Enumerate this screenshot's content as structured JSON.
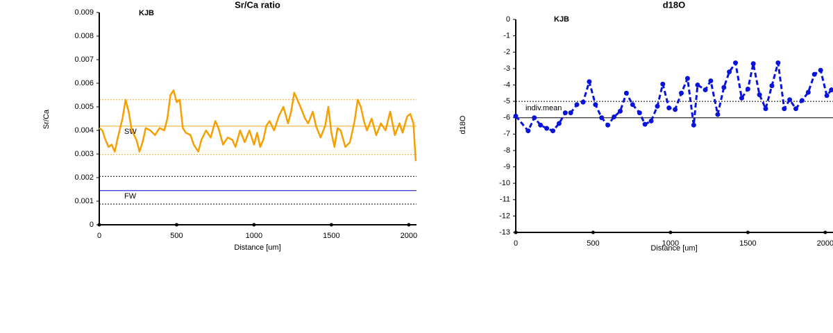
{
  "chart_data": [
    {
      "type": "line",
      "title": "Sr/Ca ratio",
      "x_label": "Distance [um]",
      "y_label": "Sr/Ca",
      "xlim": [
        0,
        2050
      ],
      "xticks": [
        0,
        500,
        1000,
        1500,
        2000
      ],
      "ylim": [
        0,
        0.009
      ],
      "yticks": [
        0,
        0.001,
        0.002,
        0.003,
        0.004,
        0.005,
        0.006,
        0.007,
        0.008,
        0.009
      ],
      "annotations": [
        "KJB",
        "SW",
        "FW"
      ],
      "reference_lines": [
        {
          "value": 0.0053,
          "color": "#f5a623",
          "style": "dotted"
        },
        {
          "value": 0.00418,
          "color": "#f5a623",
          "style": "solid"
        },
        {
          "value": 0.00298,
          "color": "#f5a623",
          "style": "dotted"
        },
        {
          "value": 0.00205,
          "color": "#000000",
          "style": "dotted"
        },
        {
          "value": 0.00145,
          "color": "#0000cc",
          "style": "solid"
        },
        {
          "value": 0.00088,
          "color": "#000000",
          "style": "dotted"
        }
      ],
      "series": [
        {
          "color": "#f5a000",
          "markers": false,
          "dashed": false,
          "x": [
            0,
            20,
            40,
            60,
            80,
            100,
            120,
            150,
            170,
            190,
            210,
            240,
            260,
            280,
            300,
            330,
            360,
            390,
            420,
            440,
            460,
            480,
            500,
            520,
            540,
            560,
            590,
            610,
            640,
            660,
            690,
            720,
            750,
            770,
            800,
            830,
            860,
            880,
            910,
            940,
            970,
            1000,
            1020,
            1040,
            1060,
            1080,
            1100,
            1130,
            1160,
            1190,
            1220,
            1240,
            1260,
            1280,
            1300,
            1330,
            1350,
            1380,
            1400,
            1430,
            1460,
            1480,
            1500,
            1520,
            1540,
            1560,
            1590,
            1620,
            1650,
            1670,
            1690,
            1710,
            1730,
            1760,
            1790,
            1820,
            1850,
            1880,
            1910,
            1940,
            1960,
            1990,
            2010,
            2030,
            2045
          ],
          "values": [
            0.0041,
            0.004,
            0.0036,
            0.0033,
            0.0034,
            0.0031,
            0.0037,
            0.0045,
            0.0053,
            0.0048,
            0.004,
            0.0036,
            0.0031,
            0.0035,
            0.0041,
            0.004,
            0.0038,
            0.0041,
            0.004,
            0.0045,
            0.0055,
            0.0057,
            0.0052,
            0.0053,
            0.0041,
            0.0039,
            0.0038,
            0.0034,
            0.0031,
            0.0036,
            0.004,
            0.0037,
            0.0044,
            0.0041,
            0.0034,
            0.0037,
            0.0036,
            0.0033,
            0.004,
            0.0035,
            0.004,
            0.0034,
            0.0039,
            0.0033,
            0.0036,
            0.0042,
            0.0044,
            0.004,
            0.0046,
            0.005,
            0.0043,
            0.0048,
            0.0056,
            0.0053,
            0.005,
            0.0045,
            0.0043,
            0.0048,
            0.0042,
            0.0037,
            0.0042,
            0.005,
            0.0039,
            0.0033,
            0.0041,
            0.004,
            0.0033,
            0.0035,
            0.0044,
            0.0053,
            0.005,
            0.0044,
            0.004,
            0.0045,
            0.0038,
            0.0043,
            0.004,
            0.0048,
            0.0038,
            0.0043,
            0.0039,
            0.0046,
            0.0047,
            0.0043,
            0.0027
          ]
        }
      ]
    },
    {
      "type": "line",
      "title": "d18O",
      "x_label": "Distance [um]",
      "y_label": "d18O",
      "xlim": [
        0,
        2050
      ],
      "xticks": [
        0,
        500,
        1000,
        1500,
        2000
      ],
      "ylim": [
        -13,
        0
      ],
      "yticks": [
        0,
        -1,
        -2,
        -3,
        -4,
        -5,
        -6,
        -7,
        -8,
        -9,
        -10,
        -11,
        -12,
        -13
      ],
      "annotations": [
        "KJB",
        "indiv.mean"
      ],
      "reference_lines": [
        {
          "value": -5.0,
          "color": "#000000",
          "style": "dotted"
        },
        {
          "value": -6.0,
          "color": "#000000",
          "style": "solid"
        }
      ],
      "series": [
        {
          "color": "#0a14d8",
          "markers": true,
          "dashed": true,
          "x": [
            0,
            80,
            120,
            160,
            200,
            240,
            280,
            320,
            355,
            395,
            435,
            475,
            515,
            555,
            595,
            635,
            675,
            715,
            755,
            800,
            835,
            875,
            915,
            950,
            990,
            1030,
            1070,
            1110,
            1150,
            1175,
            1225,
            1260,
            1305,
            1345,
            1380,
            1420,
            1460,
            1500,
            1535,
            1575,
            1615,
            1655,
            1695,
            1735,
            1770,
            1810,
            1850,
            1890,
            1930,
            1970,
            2010,
            2040
          ],
          "values": [
            -5.9,
            -6.8,
            -6.0,
            -6.45,
            -6.65,
            -6.8,
            -6.35,
            -5.7,
            -5.7,
            -5.2,
            -5.05,
            -3.8,
            -5.2,
            -6.0,
            -6.45,
            -5.95,
            -5.6,
            -4.5,
            -5.2,
            -5.7,
            -6.4,
            -6.2,
            -5.3,
            -3.95,
            -5.4,
            -5.5,
            -4.5,
            -3.6,
            -6.45,
            -4.0,
            -4.3,
            -3.75,
            -5.8,
            -4.15,
            -3.2,
            -2.65,
            -4.8,
            -4.25,
            -2.7,
            -4.6,
            -5.45,
            -4.05,
            -2.65,
            -5.45,
            -4.9,
            -5.45,
            -4.95,
            -4.45,
            -3.35,
            -3.1,
            -4.65,
            -4.3
          ]
        }
      ]
    }
  ]
}
